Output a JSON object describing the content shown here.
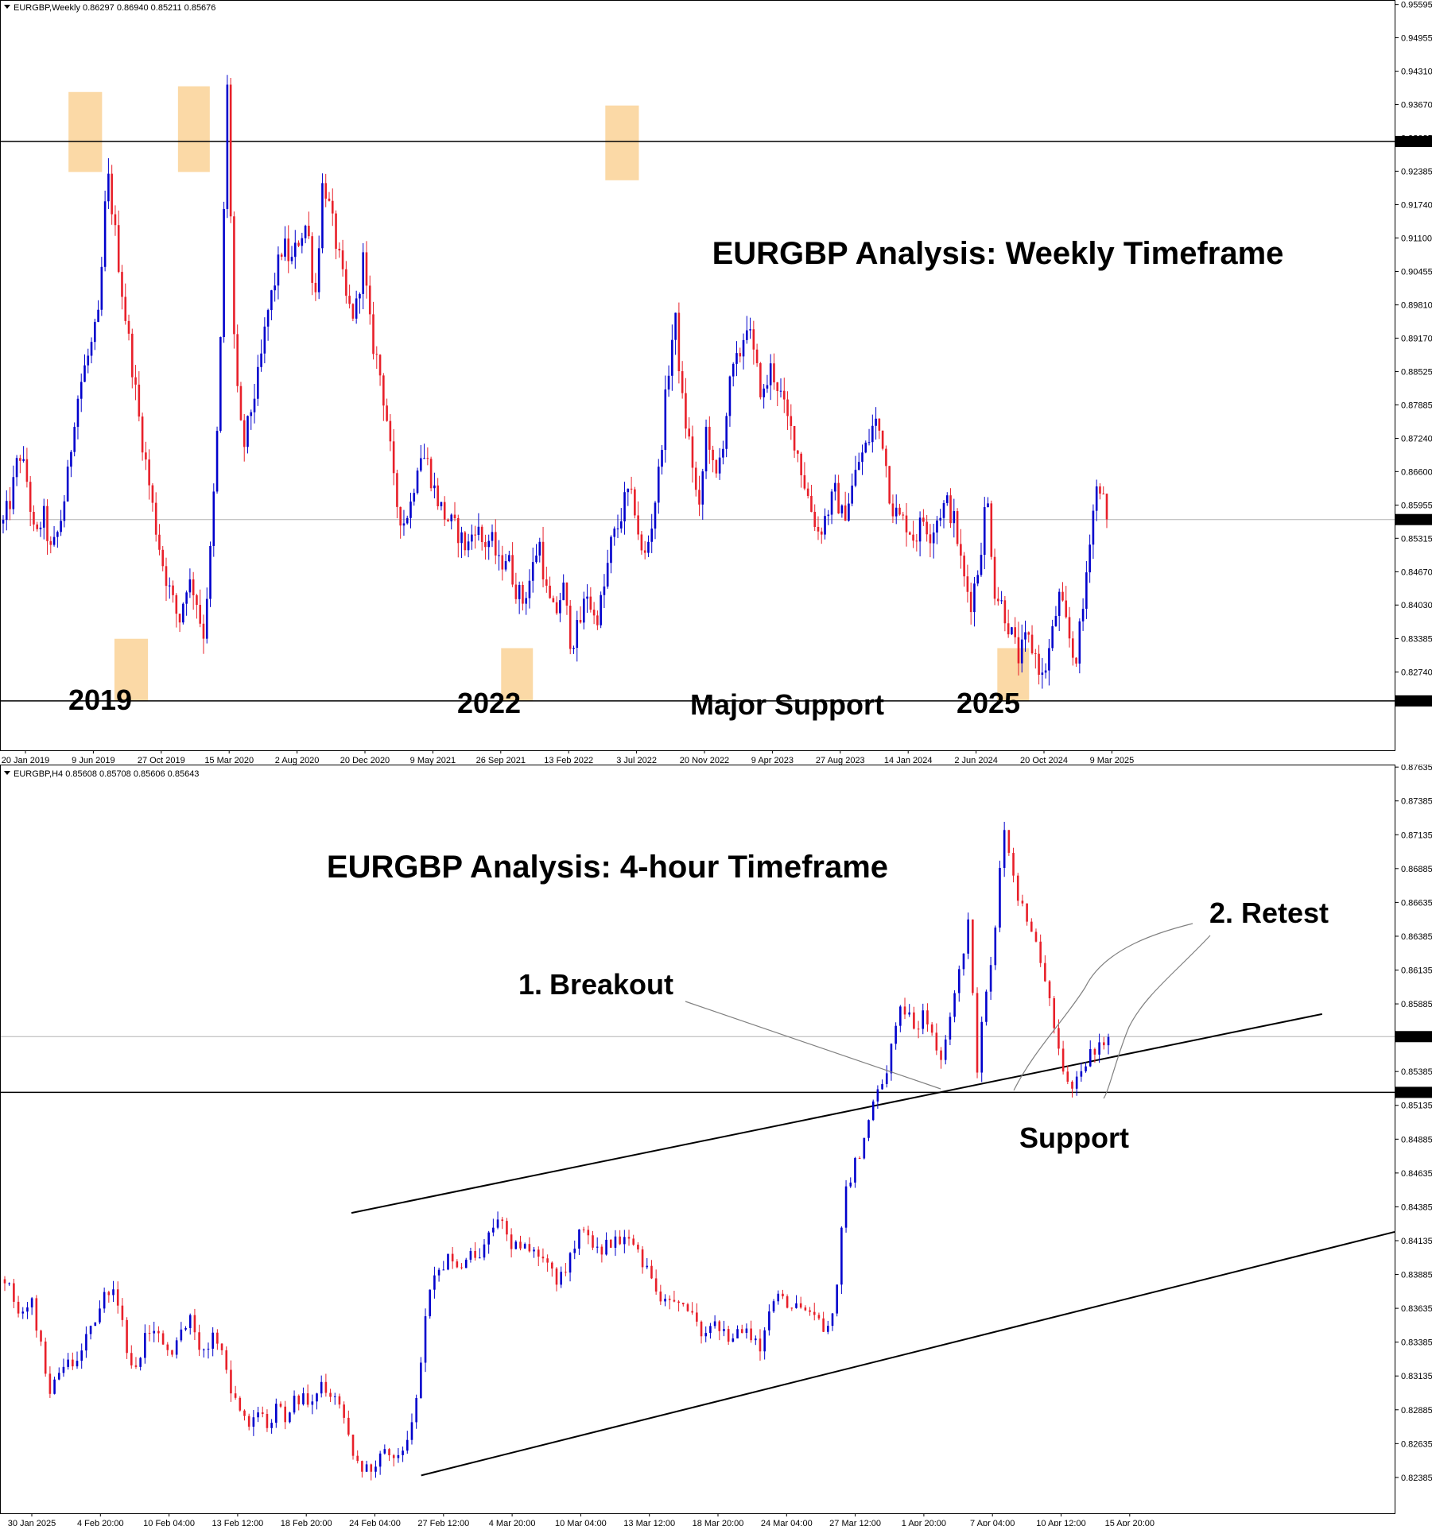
{
  "chart_data": [
    {
      "type": "candlestick",
      "name": "weekly",
      "header": "EURGBP,Weekly  0.86297 0.86940 0.85211 0.85676",
      "title": "EURGBP Analysis: Weekly Timeframe",
      "ylim": [
        0.816,
        0.9559
      ],
      "y_ticks": [
        "0.95595",
        "0.94955",
        "0.94310",
        "0.93670",
        "0.93025",
        "0.92385",
        "0.91740",
        "0.91100",
        "0.90455",
        "0.89810",
        "0.89170",
        "0.88525",
        "0.87885",
        "0.87240",
        "0.86600",
        "0.85955",
        "0.85315",
        "0.84670",
        "0.84030",
        "0.83385",
        "0.82740"
      ],
      "x_ticks": [
        "20 Jan 2019",
        "9 Jun 2019",
        "27 Oct 2019",
        "15 Mar 2020",
        "2 Aug 2020",
        "20 Dec 2020",
        "9 May 2021",
        "26 Sep 2021",
        "13 Feb 2022",
        "3 Jul 2022",
        "20 Nov 2022",
        "9 Apr 2023",
        "27 Aug 2023",
        "14 Jan 2024",
        "2 Jun 2024",
        "20 Oct 2024",
        "9 Mar 2025"
      ],
      "price_tags": [
        {
          "label": "0.92958",
          "value": 0.92958,
          "line": "solid"
        },
        {
          "label": "0.85676",
          "value": 0.85676,
          "line": "faint"
        },
        {
          "label": "0.82184",
          "value": 0.82184,
          "line": "solid"
        }
      ],
      "annotations": [
        "2019",
        "2022",
        "Major Support",
        "2025"
      ],
      "highlight_zones": [
        {
          "x_from": 2019.42,
          "x_to": 2019.61,
          "y_from": 0.9237,
          "y_to": 0.9391
        },
        {
          "x_from": 2020.04,
          "x_to": 2020.22,
          "y_from": 0.9237,
          "y_to": 0.9402
        },
        {
          "x_from": 2022.46,
          "x_to": 2022.65,
          "y_from": 0.9221,
          "y_to": 0.9365
        },
        {
          "x_from": 2019.68,
          "x_to": 2019.87,
          "y_from": 0.8218,
          "y_to": 0.8338
        },
        {
          "x_from": 2021.87,
          "x_to": 2022.05,
          "y_from": 0.8218,
          "y_to": 0.832
        },
        {
          "x_from": 2024.68,
          "x_to": 2024.86,
          "y_from": 0.8218,
          "y_to": 0.832
        }
      ],
      "series_path": [
        0.856,
        0.861,
        0.87,
        0.864,
        0.852,
        0.858,
        0.85,
        0.855,
        0.864,
        0.878,
        0.885,
        0.89,
        0.896,
        0.924,
        0.912,
        0.899,
        0.888,
        0.876,
        0.866,
        0.856,
        0.848,
        0.842,
        0.837,
        0.845,
        0.843,
        0.834,
        0.852,
        0.88,
        0.941,
        0.885,
        0.87,
        0.878,
        0.885,
        0.896,
        0.903,
        0.91,
        0.906,
        0.911,
        0.914,
        0.899,
        0.923,
        0.915,
        0.907,
        0.898,
        0.896,
        0.907,
        0.892,
        0.886,
        0.876,
        0.861,
        0.856,
        0.86,
        0.87,
        0.868,
        0.862,
        0.858,
        0.856,
        0.854,
        0.851,
        0.856,
        0.852,
        0.853,
        0.848,
        0.85,
        0.844,
        0.841,
        0.846,
        0.853,
        0.842,
        0.838,
        0.844,
        0.833,
        0.836,
        0.843,
        0.837,
        0.842,
        0.852,
        0.856,
        0.862,
        0.859,
        0.848,
        0.855,
        0.866,
        0.883,
        0.896,
        0.878,
        0.87,
        0.857,
        0.876,
        0.863,
        0.872,
        0.884,
        0.888,
        0.895,
        0.887,
        0.88,
        0.886,
        0.882,
        0.876,
        0.872,
        0.865,
        0.859,
        0.854,
        0.858,
        0.862,
        0.857,
        0.862,
        0.868,
        0.871,
        0.876,
        0.872,
        0.86,
        0.857,
        0.856,
        0.853,
        0.857,
        0.854,
        0.858,
        0.86,
        0.856,
        0.846,
        0.841,
        0.848,
        0.862,
        0.843,
        0.84,
        0.835,
        0.83,
        0.834,
        0.831,
        0.826,
        0.833,
        0.842,
        0.836,
        0.829,
        0.839,
        0.856,
        0.865,
        0.8568
      ]
    },
    {
      "type": "candlestick",
      "name": "h4",
      "header": "EURGBP,H4  0.85608 0.85708 0.85606 0.85643",
      "title": "EURGBP Analysis: 4-hour Timeframe",
      "ylim": [
        0.8222,
        0.8763
      ],
      "y_ticks": [
        "0.87635",
        "0.87385",
        "0.87135",
        "0.86885",
        "0.86635",
        "0.86385",
        "0.86135",
        "0.85885",
        "0.85385",
        "0.85135",
        "0.84885",
        "0.84635",
        "0.84385",
        "0.84135",
        "0.83885",
        "0.83635",
        "0.83385",
        "0.83135",
        "0.82885",
        "0.82635",
        "0.82385"
      ],
      "x_ticks": [
        "30 Jan 2025",
        "4 Feb 20:00",
        "10 Feb 04:00",
        "13 Feb 12:00",
        "18 Feb 20:00",
        "24 Feb 04:00",
        "27 Feb 12:00",
        "4 Mar 20:00",
        "10 Mar 04:00",
        "13 Mar 12:00",
        "18 Mar 20:00",
        "24 Mar 04:00",
        "27 Mar 12:00",
        "1 Apr 20:00",
        "7 Apr 04:00",
        "10 Apr 12:00",
        "15 Apr 20:00"
      ],
      "price_tags": [
        {
          "label": "0.85643",
          "value": 0.85643,
          "line": "faint"
        },
        {
          "label": "0.85231",
          "value": 0.85231,
          "line": "solid"
        }
      ],
      "annotations": [
        "1.",
        "Breakout",
        "2. Retest",
        "Support"
      ],
      "trendlines": [
        {
          "from": [
            0.252,
            0.8434
          ],
          "to": [
            0.948,
            0.8581
          ]
        },
        {
          "from": [
            0.302,
            0.824
          ],
          "to": [
            1.0,
            0.842
          ]
        }
      ],
      "series_path": [
        0.8385,
        0.8372,
        0.836,
        0.837,
        0.834,
        0.83,
        0.831,
        0.833,
        0.832,
        0.834,
        0.8355,
        0.8365,
        0.838,
        0.837,
        0.833,
        0.832,
        0.834,
        0.835,
        0.8335,
        0.8325,
        0.8345,
        0.836,
        0.834,
        0.833,
        0.8345,
        0.8325,
        0.83,
        0.828,
        0.8275,
        0.8285,
        0.828,
        0.829,
        0.8285,
        0.8295,
        0.83,
        0.8295,
        0.8305,
        0.83,
        0.829,
        0.8275,
        0.8255,
        0.8245,
        0.8248,
        0.8255,
        0.8252,
        0.8258,
        0.8265,
        0.8295,
        0.836,
        0.8385,
        0.8395,
        0.8405,
        0.839,
        0.841,
        0.8395,
        0.842,
        0.843,
        0.8425,
        0.8405,
        0.8415,
        0.8408,
        0.8395,
        0.84,
        0.8385,
        0.839,
        0.841,
        0.842,
        0.8415,
        0.8405,
        0.841,
        0.8412,
        0.842,
        0.841,
        0.8395,
        0.838,
        0.837,
        0.8372,
        0.8365,
        0.836,
        0.835,
        0.8345,
        0.8355,
        0.835,
        0.834,
        0.8345,
        0.835,
        0.833,
        0.836,
        0.8375,
        0.8365,
        0.836,
        0.837,
        0.836,
        0.835,
        0.8345,
        0.838,
        0.845,
        0.847,
        0.8485,
        0.851,
        0.8525,
        0.8545,
        0.8585,
        0.858,
        0.857,
        0.8585,
        0.856,
        0.855,
        0.858,
        0.861,
        0.865,
        0.854,
        0.86,
        0.864,
        0.872,
        0.869,
        0.866,
        0.865,
        0.863,
        0.86,
        0.857,
        0.8535,
        0.8525,
        0.854,
        0.855,
        0.8555,
        0.8564
      ]
    }
  ],
  "colors": {
    "bull": "#0000cc",
    "bear": "#e8202a",
    "zone": "#fbd9a6",
    "line": "#000000",
    "faint": "#b4b4b4"
  }
}
